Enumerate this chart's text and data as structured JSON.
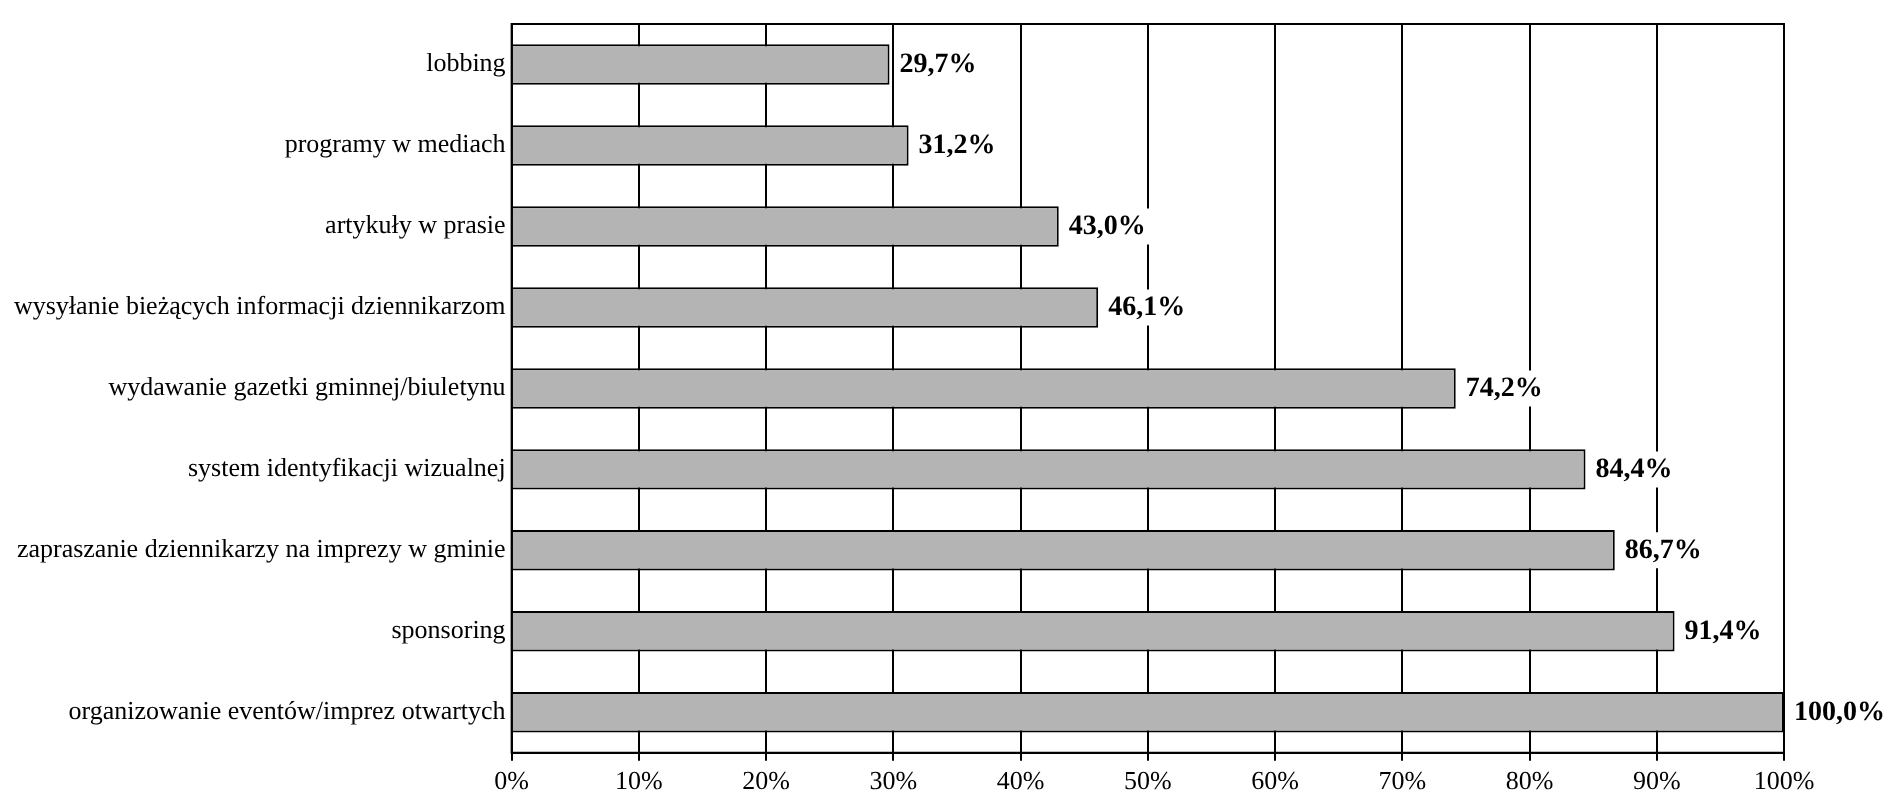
{
  "chart_data": {
    "type": "bar",
    "orientation": "horizontal",
    "categories": [
      "lobbing",
      "programy w mediach",
      "artykuły w prasie",
      "wysyłanie bieżących informacji dziennikarzom",
      "wydawanie gazetki gminnej/biuletynu",
      "system identyfikacji wizualnej",
      "zapraszanie dziennikarzy na imprezy w gminie",
      "sponsoring",
      "organizowanie eventów/imprez otwartych"
    ],
    "values": [
      29.7,
      31.2,
      43.0,
      46.1,
      74.2,
      84.4,
      86.7,
      91.4,
      100.0
    ],
    "value_labels": [
      "29,7%",
      "31,2%",
      "43,0%",
      "46,1%",
      "74,2%",
      "84,4%",
      "86,7%",
      "91,4%",
      "100,0%"
    ],
    "color": "#b4b4b4",
    "xlim": [
      0,
      100
    ],
    "xticks": [
      {
        "value": 0,
        "label": "0%"
      },
      {
        "value": 10,
        "label": "10%"
      },
      {
        "value": 20,
        "label": "20%"
      },
      {
        "value": 30,
        "label": "30%"
      },
      {
        "value": 40,
        "label": "40%"
      },
      {
        "value": 50,
        "label": "50%"
      },
      {
        "value": 60,
        "label": "60%"
      },
      {
        "value": 70,
        "label": "70%"
      },
      {
        "value": 80,
        "label": "80%"
      },
      {
        "value": 90,
        "label": "90%"
      },
      {
        "value": 100,
        "label": "100%"
      }
    ],
    "grid": "x",
    "legend": false
  }
}
